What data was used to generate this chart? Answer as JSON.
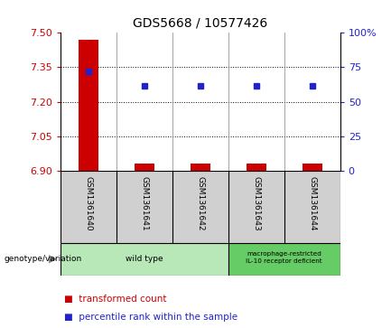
{
  "title": "GDS5668 / 10577426",
  "samples": [
    "GSM1361640",
    "GSM1361641",
    "GSM1361642",
    "GSM1361643",
    "GSM1361644"
  ],
  "red_values": [
    7.47,
    6.93,
    6.93,
    6.93,
    6.93
  ],
  "blue_values": [
    7.33,
    7.27,
    7.27,
    7.27,
    7.27
  ],
  "ylim_left": [
    6.9,
    7.5
  ],
  "yticks_left": [
    6.9,
    7.05,
    7.2,
    7.35,
    7.5
  ],
  "yticks_right": [
    0,
    25,
    50,
    75,
    100
  ],
  "ylim_right": [
    0,
    100
  ],
  "red_color": "#cc0000",
  "blue_color": "#2222cc",
  "group_color_1": "#b8e8b8",
  "group_color_2": "#66cc66",
  "sample_bg": "#d0d0d0",
  "group_row_label": "genotype/variation",
  "legend_red": "transformed count",
  "legend_blue": "percentile rank within the sample",
  "bar_width": 0.35,
  "title_fontsize": 10,
  "tick_fontsize": 8,
  "sample_fontsize": 6.5,
  "group_fontsize": 6.5,
  "legend_fontsize": 7.5
}
